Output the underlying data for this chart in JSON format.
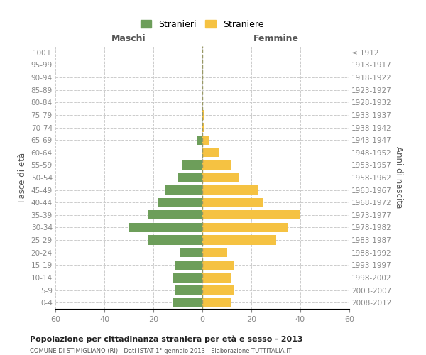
{
  "age_groups": [
    "0-4",
    "5-9",
    "10-14",
    "15-19",
    "20-24",
    "25-29",
    "30-34",
    "35-39",
    "40-44",
    "45-49",
    "50-54",
    "55-59",
    "60-64",
    "65-69",
    "70-74",
    "75-79",
    "80-84",
    "85-89",
    "90-94",
    "95-99",
    "100+"
  ],
  "birth_years": [
    "2008-2012",
    "2003-2007",
    "1998-2002",
    "1993-1997",
    "1988-1992",
    "1983-1987",
    "1978-1982",
    "1973-1977",
    "1968-1972",
    "1963-1967",
    "1958-1962",
    "1953-1957",
    "1948-1952",
    "1943-1947",
    "1938-1942",
    "1933-1937",
    "1928-1932",
    "1923-1927",
    "1918-1922",
    "1913-1917",
    "≤ 1912"
  ],
  "males": [
    12,
    11,
    12,
    11,
    9,
    22,
    30,
    22,
    18,
    15,
    10,
    8,
    0,
    2,
    0,
    0,
    0,
    0,
    0,
    0,
    0
  ],
  "females": [
    12,
    13,
    12,
    13,
    10,
    30,
    35,
    40,
    25,
    23,
    15,
    12,
    7,
    3,
    1,
    1,
    0,
    0,
    0,
    0,
    0
  ],
  "male_color": "#6d9e5a",
  "female_color": "#f5c242",
  "title": "Popolazione per cittadinanza straniera per età e sesso - 2013",
  "subtitle": "COMUNE DI STIMIGLIANO (RI) - Dati ISTAT 1° gennaio 2013 - Elaborazione TUTTITALIA.IT",
  "xlabel_left": "Maschi",
  "xlabel_right": "Femmine",
  "ylabel_left": "Fasce di età",
  "ylabel_right": "Anni di nascita",
  "legend_stranieri": "Stranieri",
  "legend_straniere": "Straniere",
  "xlim": 60,
  "background_color": "#ffffff",
  "grid_color": "#cccccc",
  "tick_color": "#888888",
  "bar_height": 0.75
}
